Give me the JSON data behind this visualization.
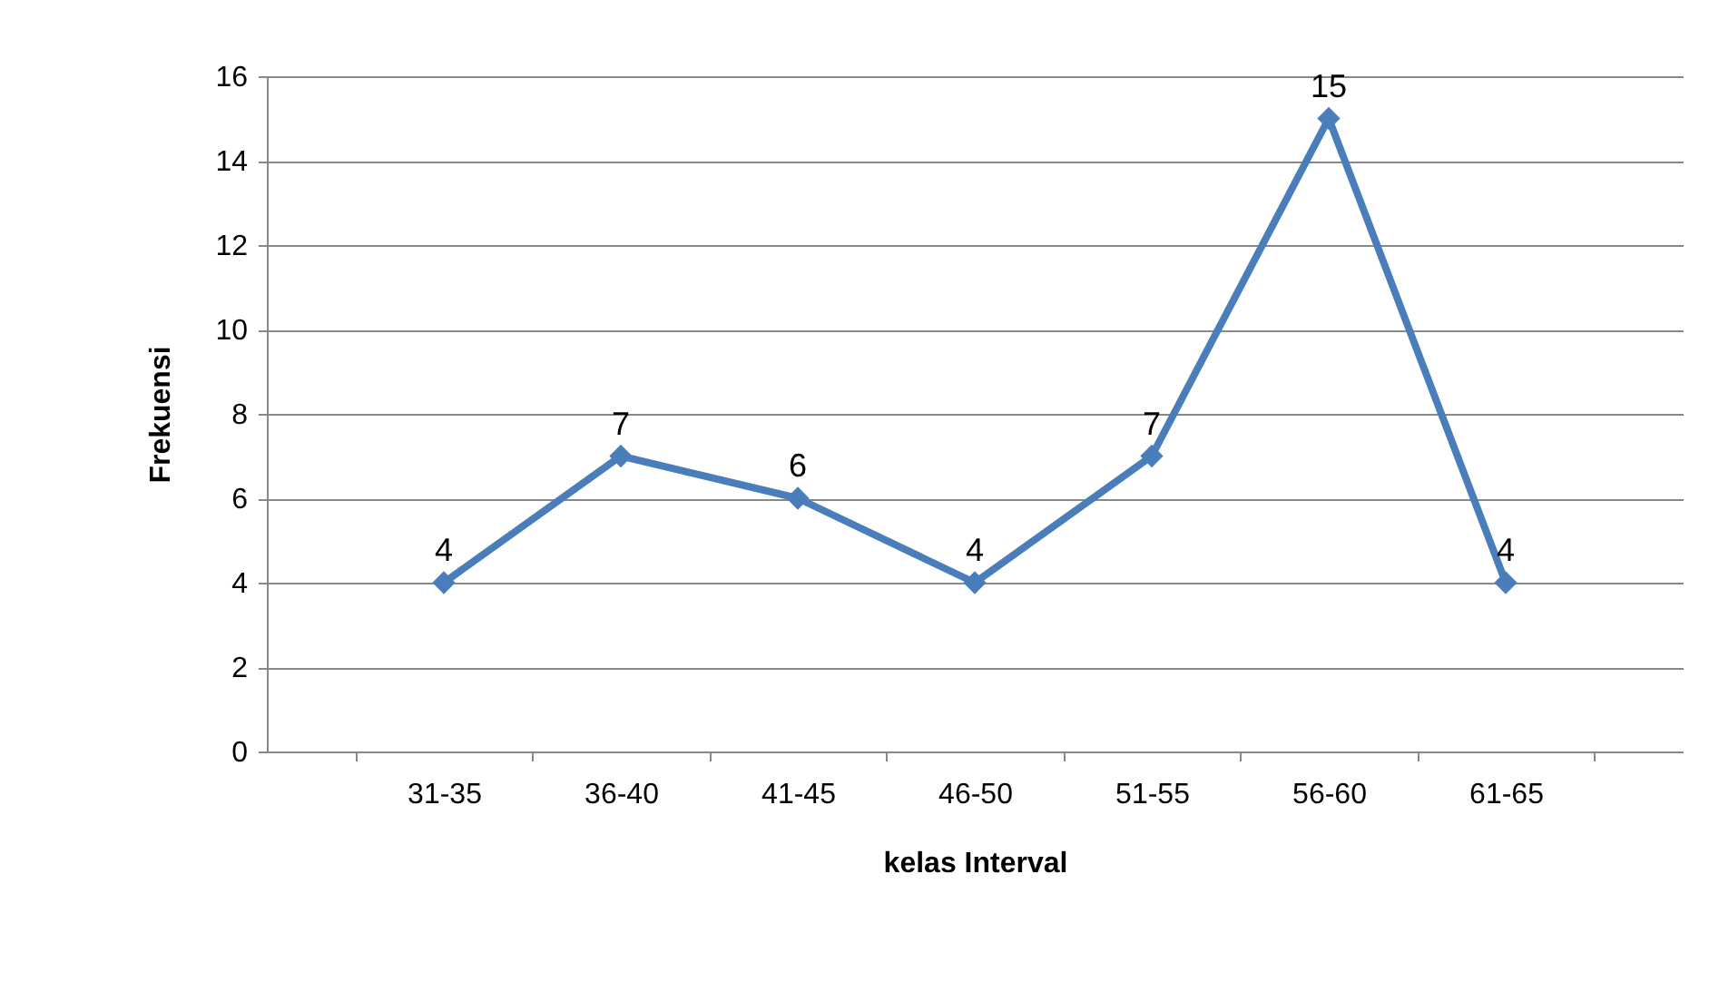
{
  "chart_data": {
    "type": "line",
    "xlabel": "kelas Interval",
    "ylabel": "Frekuensi",
    "categories": [
      "31-35",
      "36-40",
      "41-45",
      "46-50",
      "51-55",
      "56-60",
      "61-65"
    ],
    "series": [
      {
        "color": "#4a7ebb",
        "values": [
          4,
          7,
          6,
          4,
          7,
          15,
          4
        ]
      }
    ],
    "ylim": [
      0,
      16
    ],
    "yticks": [
      0,
      2,
      4,
      6,
      8,
      10,
      12,
      14,
      16
    ],
    "grid": "y",
    "marker": "diamond",
    "line_style": "solid",
    "data_labels": true
  }
}
